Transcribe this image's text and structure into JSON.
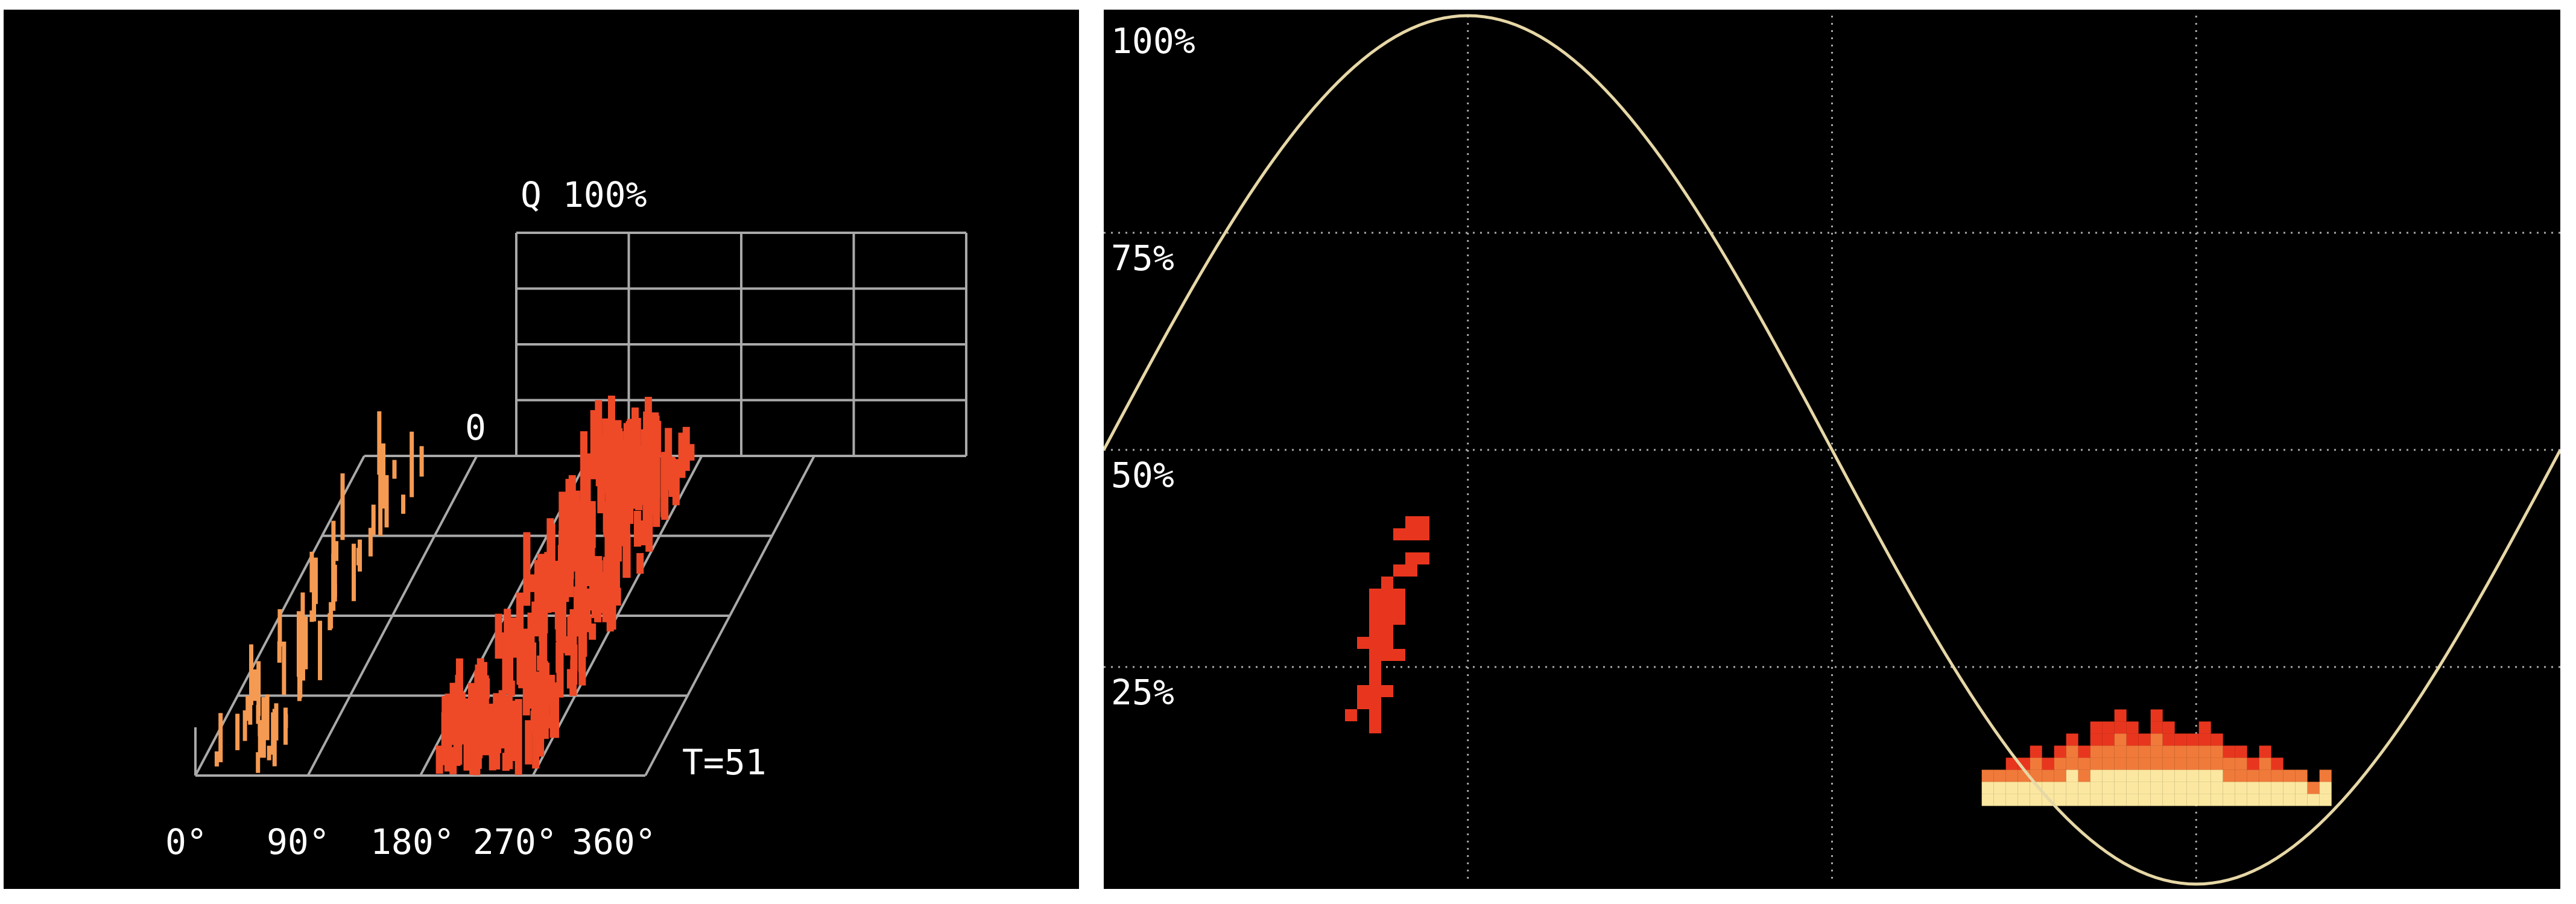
{
  "colors": {
    "background": "#000000",
    "grid": "#a9a9a9",
    "sine": "#e6d7a6",
    "pulse_low": "#e8361e",
    "pulse_mid": "#f07a3a",
    "pulse_high": "#fbe7a0",
    "pulse_left_3d": "#f59a52",
    "pulse_right_3d": "#ee4a28",
    "label": "#ffffff"
  },
  "left_chart": {
    "type": "3d-bar",
    "q_label": "Q 100%",
    "zero_label": "0",
    "t_label": "T=51",
    "x_ticks": [
      "0°",
      "90°",
      "180°",
      "270°",
      "360°"
    ],
    "phase_range_deg": [
      0,
      360
    ],
    "q_range_pct": [
      0,
      100
    ],
    "cycles": 51
  },
  "right_chart": {
    "type": "heatmap",
    "y_ticks": [
      "100%",
      "75%",
      "50%",
      "25%"
    ],
    "y_range_pct": [
      0,
      100
    ],
    "phase_range_deg": [
      0,
      360
    ],
    "x_divisions": 4,
    "reference": "sine",
    "grid": "dotted"
  },
  "chart_data": [
    {
      "type": "bar",
      "title": "",
      "xlabel": "",
      "ylabel": "Q",
      "x_ticks": [
        "0°",
        "90°",
        "180°",
        "270°",
        "360°"
      ],
      "ylim": [
        0,
        100
      ],
      "series": [
        {
          "phase_deg_range": [
            10,
            58
          ],
          "q_pct_range": [
            5,
            30
          ],
          "count_approx": 60
        },
        {
          "phase_deg_range": [
            190,
            270
          ],
          "q_pct_range": [
            5,
            35
          ],
          "count_approx": 250
        }
      ]
    },
    {
      "type": "heatmap",
      "title": "",
      "xlim": [
        0,
        360
      ],
      "ylim": [
        0,
        100
      ],
      "y_ticks": [
        "100%",
        "75%",
        "50%",
        "25%"
      ],
      "reference_sine": {
        "amplitude_pct": 50,
        "offset_pct": 50,
        "peak_phase_deg": 90
      },
      "clusters": [
        {
          "phase_deg_range": [
            55,
            80
          ],
          "amplitude_pct_range": [
            18,
            43
          ],
          "density": "low"
        },
        {
          "phase_deg_range": [
            217,
            305
          ],
          "amplitude_pct_range": [
            9,
            21
          ],
          "density": "high"
        }
      ]
    }
  ]
}
